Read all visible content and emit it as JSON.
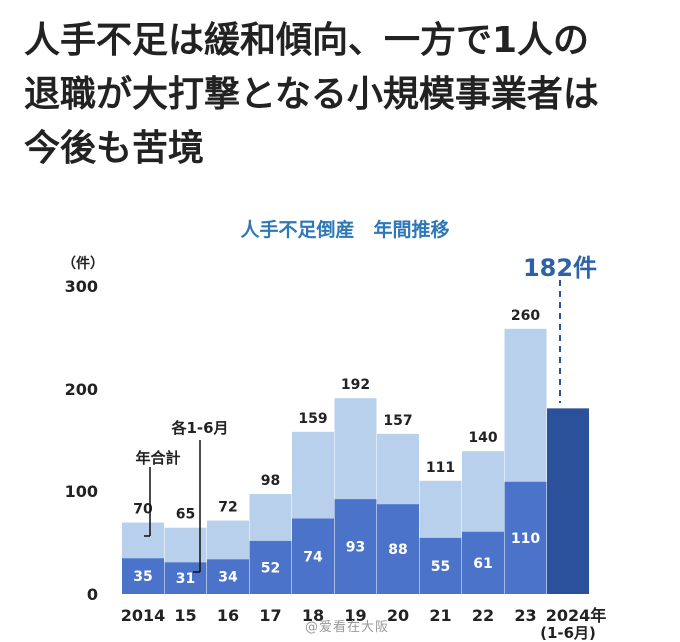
{
  "headline": {
    "lines": [
      "人手不足は緩和傾向、一方で1人の",
      "退職が大打撃となる小規模事業者は",
      "今後も苦境"
    ]
  },
  "chart_data": {
    "type": "bar",
    "title": "人手不足倒産　年間推移",
    "unit_label": "（件）",
    "ylim": [
      0,
      300
    ],
    "yticks": [
      "0",
      "100",
      "200",
      "300"
    ],
    "categories": [
      "2014",
      "15",
      "16",
      "17",
      "18",
      "19",
      "20",
      "21",
      "22",
      "23",
      "2024年"
    ],
    "last_category_sub": "(1-6月)",
    "series": [
      {
        "name": "年合計",
        "values": [
          70,
          65,
          72,
          98,
          159,
          192,
          157,
          111,
          140,
          260,
          null
        ]
      },
      {
        "name": "各1-6月",
        "values": [
          35,
          31,
          34,
          52,
          74,
          93,
          88,
          55,
          61,
          110,
          182
        ]
      }
    ],
    "highlight_label": "182件",
    "colors": {
      "annual": "#b9d0ec",
      "half_year": "#4a73c9",
      "highlight": "#2b519a",
      "title": "#2f78b8",
      "highlight_text": "#2d62a8",
      "label_inside": "#ffffff",
      "label_outside": "#222222"
    }
  },
  "watermark": "@爱看在大阪"
}
